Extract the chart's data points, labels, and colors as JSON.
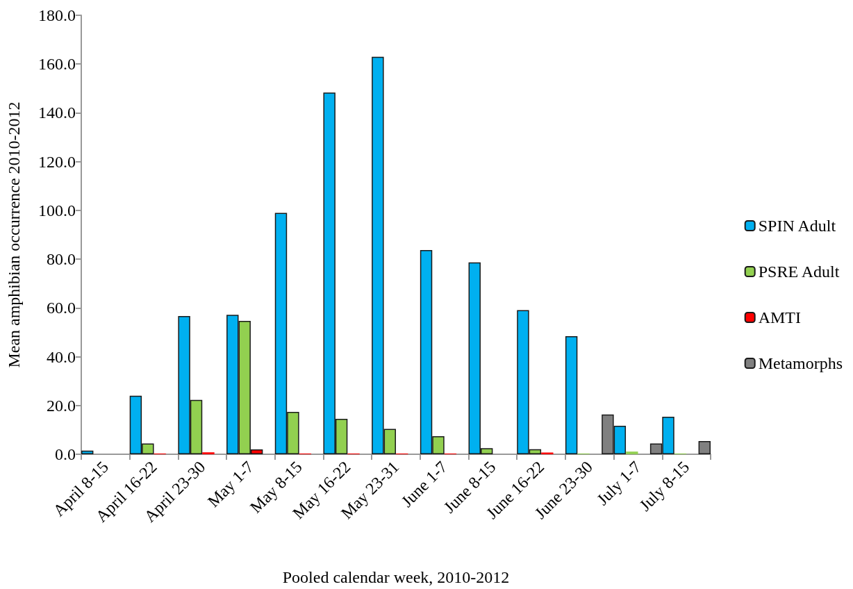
{
  "chart_data": {
    "type": "bar",
    "xlabel": "Pooled calendar week, 2010-2012",
    "ylabel": "Mean amphibian occurrence 2010-2012",
    "categories": [
      "April 8-15",
      "April 16-22",
      "April 23-30",
      "May 1-7",
      "May 8-15",
      "May 16-22",
      "May 23-31",
      "June 1-7",
      "June 8-15",
      "June 16-22",
      "June 23-30",
      "July 1-7",
      "July 8-15"
    ],
    "series": [
      {
        "name": "SPIN Adult",
        "color": "#00b0f0",
        "values": [
          1.5,
          24.0,
          56.7,
          57.2,
          99.0,
          148.3,
          163.0,
          83.7,
          78.7,
          59.1,
          48.4,
          11.7,
          15.4
        ]
      },
      {
        "name": "PSRE Adult",
        "color": "#92d050",
        "values": [
          null,
          4.4,
          22.3,
          54.7,
          17.4,
          14.5,
          10.4,
          7.4,
          2.5,
          2.1,
          0.3,
          1.1,
          0.3
        ]
      },
      {
        "name": "AMTI",
        "color": "#ff0000",
        "values": [
          null,
          0.3,
          0.8,
          2.0,
          0.3,
          0.3,
          0.3,
          0.3,
          null,
          0.7,
          null,
          null,
          null
        ]
      },
      {
        "name": "Metamorphs",
        "color": "#808080",
        "values": [
          null,
          null,
          null,
          null,
          null,
          null,
          null,
          null,
          null,
          null,
          16.3,
          4.4,
          5.4
        ]
      }
    ],
    "ylim": [
      0,
      180
    ],
    "yticks": [
      {
        "value": 0,
        "label": "0.0"
      },
      {
        "value": 20,
        "label": "20.0"
      },
      {
        "value": 40,
        "label": "40.0"
      },
      {
        "value": 60,
        "label": "60.0"
      },
      {
        "value": 80,
        "label": "80.0"
      },
      {
        "value": 100,
        "label": "100.0"
      },
      {
        "value": 120,
        "label": "120.0"
      },
      {
        "value": 140,
        "label": "140.0"
      },
      {
        "value": 160,
        "label": "160.0"
      },
      {
        "value": 180,
        "label": "180.0"
      }
    ],
    "grid": false,
    "legend": "right"
  }
}
